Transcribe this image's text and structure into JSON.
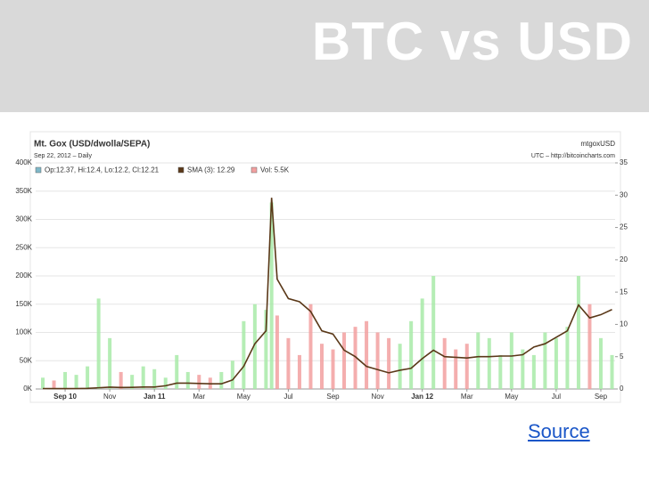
{
  "slide_title": "BTC vs USD",
  "source_link": "Source",
  "chart_data": {
    "type": "combo",
    "title": "Mt. Gox (USD/dwolla/SEPA)",
    "subtitle": "Sep 22, 2012 – Daily",
    "symbol": "mtgoxUSD",
    "attribution": "UTC – http://bitcoincharts.com",
    "ohlc_legend": {
      "name": "Op:12.37, Hi:12.4, Lo:12.2, Cl:12.21",
      "color": "#7fb8c8"
    },
    "x": [
      1,
      1.5,
      2,
      2.5,
      3,
      3.5,
      4,
      4.5,
      5,
      5.5,
      6,
      6.5,
      7,
      7.5,
      8,
      8.5,
      9,
      9.5,
      10,
      10.5,
      11,
      11.25,
      11.5,
      12,
      12.5,
      13,
      13.5,
      14,
      14.5,
      15,
      15.5,
      16,
      16.5,
      17,
      17.5,
      18,
      18.5,
      19,
      19.5,
      20,
      20.5,
      21,
      21.5,
      22,
      22.5,
      23,
      23.5,
      24,
      24.5,
      25,
      25.5,
      26,
      26.5
    ],
    "series": [
      {
        "name": "Vol: 5.5K",
        "type": "bar",
        "color": "#f2a0a0",
        "up_color": "#a8eaa8",
        "values": [
          20000,
          15000,
          30000,
          25000,
          40000,
          160000,
          90000,
          30000,
          25000,
          40000,
          35000,
          20000,
          60000,
          30000,
          25000,
          20000,
          30000,
          50000,
          120000,
          150000,
          140000,
          330000,
          130000,
          90000,
          60000,
          150000,
          80000,
          70000,
          100000,
          110000,
          120000,
          100000,
          90000,
          80000,
          120000,
          160000,
          200000,
          90000,
          70000,
          80000,
          100000,
          90000,
          60000,
          100000,
          70000,
          60000,
          100000,
          90000,
          110000,
          200000,
          150000,
          90000,
          60000
        ]
      },
      {
        "name": "SMA (3): 12.29",
        "type": "line",
        "axis": "y2",
        "color": "#5a3818",
        "values": [
          0.07,
          0.06,
          0.06,
          0.07,
          0.1,
          0.19,
          0.28,
          0.23,
          0.25,
          0.3,
          0.3,
          0.5,
          0.9,
          0.9,
          0.85,
          0.8,
          0.8,
          1.4,
          3.5,
          7,
          9,
          29.6,
          17,
          14,
          13.5,
          12,
          9,
          8.5,
          6,
          5,
          3.5,
          3,
          2.5,
          2.9,
          3.2,
          4.7,
          6,
          5,
          4.9,
          4.8,
          5,
          5,
          5.1,
          5.1,
          5.3,
          6.5,
          7,
          8,
          9,
          13,
          11,
          11.5,
          12.3
        ]
      }
    ],
    "xlim": [
      0.68,
      26.64
    ],
    "xticks": [
      {
        "value": 2,
        "label": "Sep 10"
      },
      {
        "value": 4,
        "label": "Nov"
      },
      {
        "value": 6,
        "label": "Jan 11"
      },
      {
        "value": 8,
        "label": "Mar"
      },
      {
        "value": 10,
        "label": "May"
      },
      {
        "value": 12,
        "label": "Jul"
      },
      {
        "value": 14,
        "label": "Sep"
      },
      {
        "value": 16,
        "label": "Nov"
      },
      {
        "value": 18,
        "label": "Jan 12"
      },
      {
        "value": 20,
        "label": "Mar"
      },
      {
        "value": 22,
        "label": "May"
      },
      {
        "value": 24,
        "label": "Jul"
      },
      {
        "value": 26,
        "label": "Sep"
      }
    ],
    "ylim": [
      0,
      400000
    ],
    "yticks": [
      {
        "value": 0,
        "label": "0K"
      },
      {
        "value": 50000,
        "label": "50K"
      },
      {
        "value": 100000,
        "label": "100K"
      },
      {
        "value": 150000,
        "label": "150K"
      },
      {
        "value": 200000,
        "label": "200K"
      },
      {
        "value": 250000,
        "label": "250K"
      },
      {
        "value": 300000,
        "label": "300K"
      },
      {
        "value": 350000,
        "label": "350K"
      },
      {
        "value": 400000,
        "label": "400K"
      }
    ],
    "y2lim": [
      0,
      35
    ],
    "y2ticks": [
      0,
      5,
      10,
      15,
      20,
      25,
      30,
      35
    ],
    "grid": true
  }
}
